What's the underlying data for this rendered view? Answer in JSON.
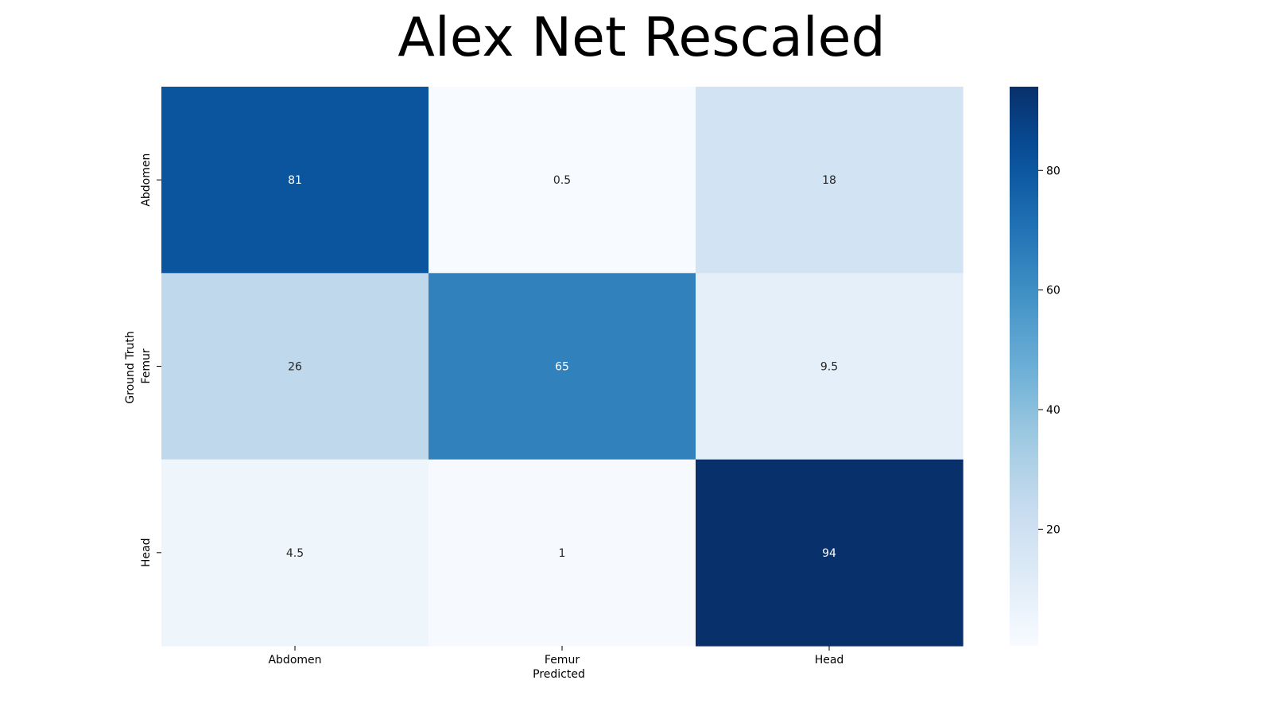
{
  "chart_data": {
    "type": "heatmap",
    "title": "Alex Net Rescaled",
    "xlabel": "Predicted",
    "ylabel": "Ground Truth",
    "x_categories": [
      "Abdomen",
      "Femur",
      "Head"
    ],
    "y_categories": [
      "Abdomen",
      "Femur",
      "Head"
    ],
    "values": [
      [
        81,
        0.5,
        18
      ],
      [
        26,
        65,
        9.5
      ],
      [
        4.5,
        1,
        94
      ]
    ],
    "value_labels": [
      [
        "81",
        "0.5",
        "18"
      ],
      [
        "26",
        "65",
        "9.5"
      ],
      [
        "4.5",
        "1",
        "94"
      ]
    ],
    "colormap": "Blues",
    "colorbar": {
      "range": [
        0.5,
        94
      ],
      "ticks": [
        20,
        40,
        60,
        80
      ],
      "tick_labels": [
        "20",
        "40",
        "60",
        "80"
      ]
    },
    "grid": false
  }
}
